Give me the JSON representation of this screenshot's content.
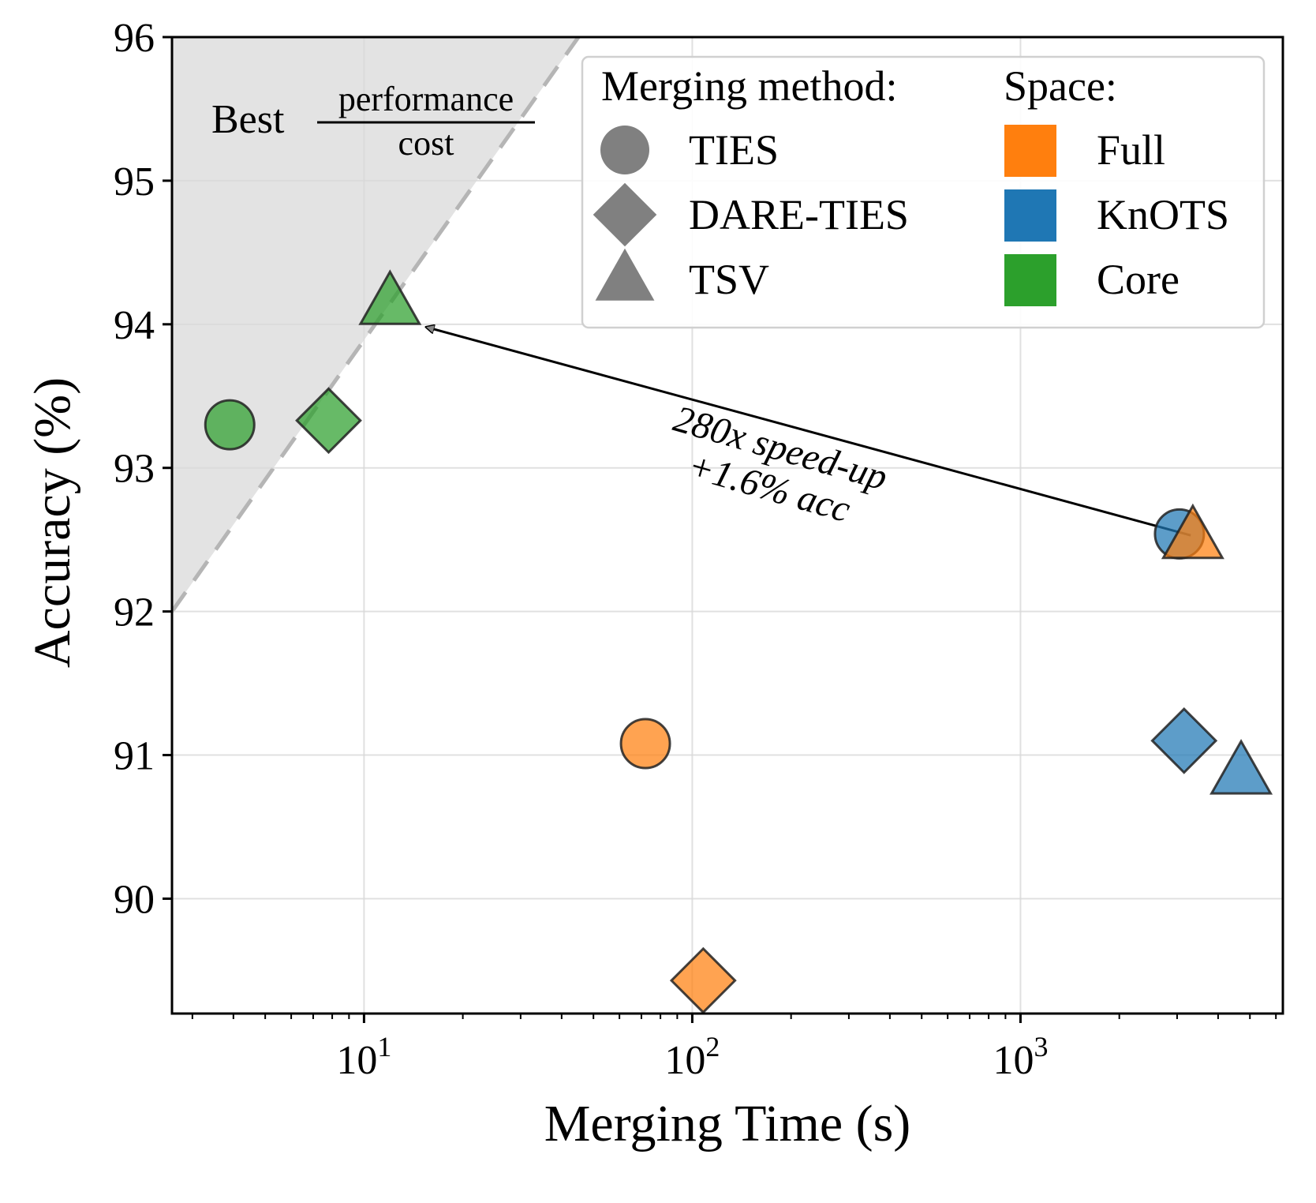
{
  "chart_data": {
    "type": "scatter",
    "xscale": "log",
    "xlim": [
      2.6,
      6300
    ],
    "ylim": [
      89.2,
      96
    ],
    "xlabel": "Merging Time (s)",
    "ylabel": "Accuracy (%)",
    "y_ticks": [
      90,
      91,
      92,
      93,
      94,
      95,
      96
    ],
    "x_ticks": [
      {
        "value": 10,
        "base": "10",
        "exp": "1"
      },
      {
        "value": 100,
        "base": "10",
        "exp": "2"
      },
      {
        "value": 1000,
        "base": "10",
        "exp": "3"
      }
    ],
    "grid": true,
    "spaces": [
      {
        "name": "Full",
        "color": "#ff7f0e"
      },
      {
        "name": "KnOTS",
        "color": "#1f77b4"
      },
      {
        "name": "Core",
        "color": "#2ca02c"
      }
    ],
    "methods": [
      {
        "name": "TIES",
        "marker": "circle"
      },
      {
        "name": "DARE-TIES",
        "marker": "diamond"
      },
      {
        "name": "TSV",
        "marker": "triangle"
      }
    ],
    "points": [
      {
        "space": "Core",
        "method": "TIES",
        "x": 3.9,
        "y": 93.3
      },
      {
        "space": "Core",
        "method": "DARE-TIES",
        "x": 7.8,
        "y": 93.33
      },
      {
        "space": "Core",
        "method": "TSV",
        "x": 12,
        "y": 94.15
      },
      {
        "space": "Full",
        "method": "TIES",
        "x": 72,
        "y": 91.08
      },
      {
        "space": "Full",
        "method": "DARE-TIES",
        "x": 108,
        "y": 89.43
      },
      {
        "space": "KnOTS",
        "method": "TIES",
        "x": 3050,
        "y": 92.54
      },
      {
        "space": "Full",
        "method": "TSV",
        "x": 3350,
        "y": 92.52
      },
      {
        "space": "KnOTS",
        "method": "DARE-TIES",
        "x": 3150,
        "y": 91.1
      },
      {
        "space": "KnOTS",
        "method": "TSV",
        "x": 4700,
        "y": 90.88
      }
    ],
    "frontier": {
      "x": [
        2.6,
        45
      ],
      "y": [
        92,
        96
      ]
    },
    "region_label": {
      "prefix": "Best",
      "numerator": "performance",
      "denominator": "cost"
    },
    "arrow": {
      "from": {
        "x": 3300,
        "y": 92.53
      },
      "to": {
        "x": 15.5,
        "y": 93.98
      }
    },
    "annotation": {
      "lines": [
        "280x speed-up",
        "+1.6% acc"
      ]
    },
    "legend": {
      "position": "top-right",
      "method_title": "Merging method:",
      "space_title": "Space:"
    }
  }
}
